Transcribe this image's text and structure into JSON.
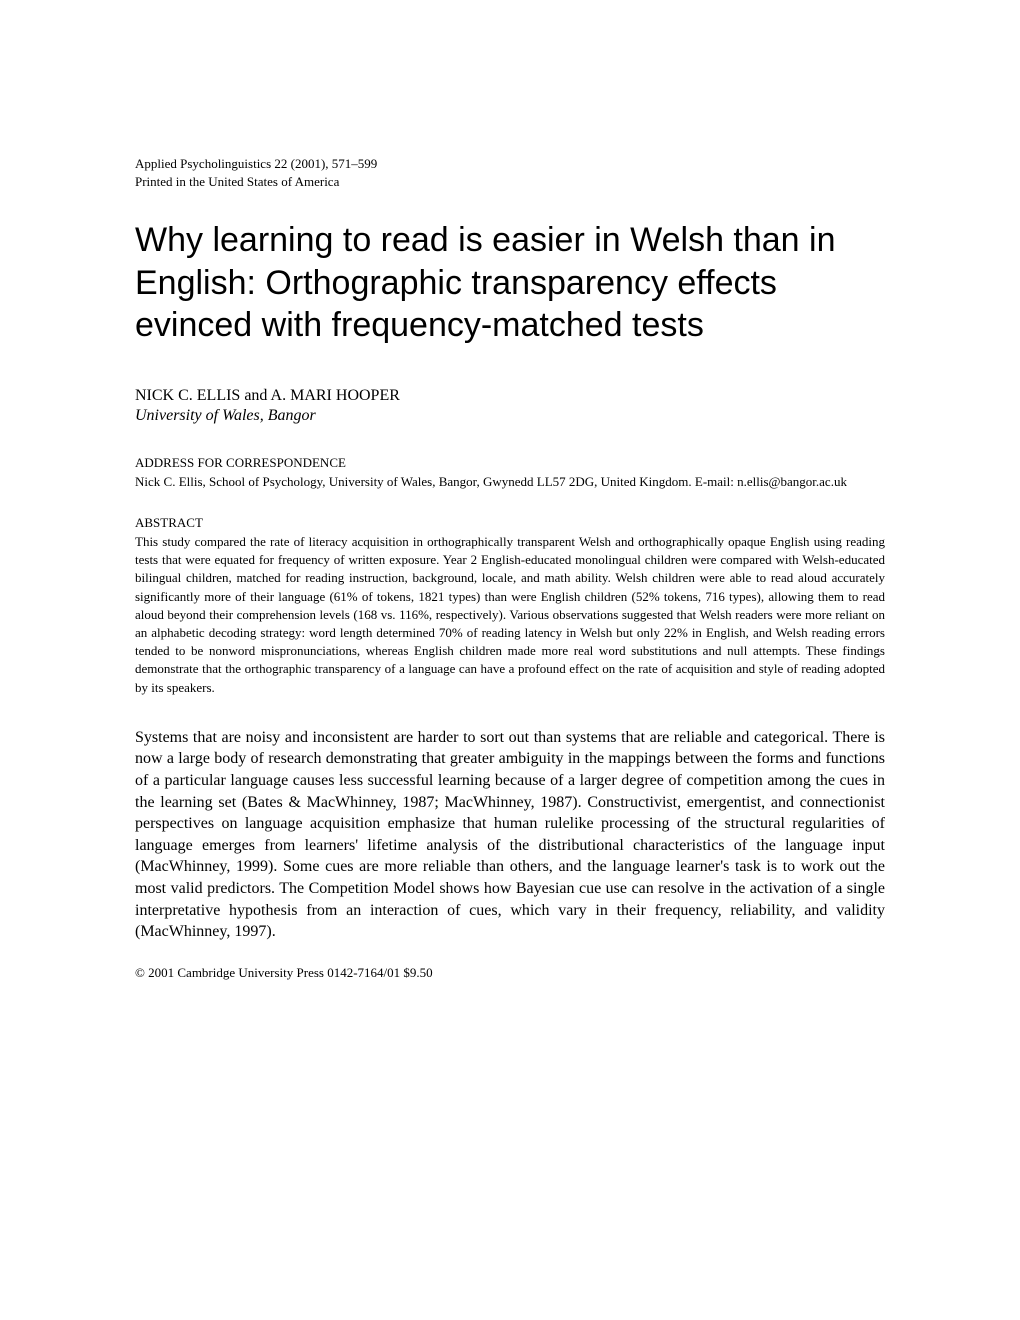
{
  "journal": {
    "line1": "Applied Psycholinguistics 22 (2001), 571–599",
    "line2": "Printed in the United States of America"
  },
  "title": "Why learning to read is easier in Welsh than in English: Orthographic transparency effects evinced with frequency-matched tests",
  "authors": "NICK C. ELLIS and A. MARI HOOPER",
  "affiliation": "University of Wales, Bangor",
  "correspondence": {
    "heading": "ADDRESS FOR CORRESPONDENCE",
    "text": "Nick C. Ellis, School of Psychology, University of Wales, Bangor, Gwynedd LL57 2DG, United Kingdom. E-mail: n.ellis@bangor.ac.uk"
  },
  "abstract": {
    "heading": "ABSTRACT",
    "text": "This study compared the rate of literacy acquisition in orthographically transparent Welsh and orthographically opaque English using reading tests that were equated for frequency of written exposure. Year 2 English-educated monolingual children were compared with Welsh-educated bilingual children, matched for reading instruction, background, locale, and math ability. Welsh children were able to read aloud accurately significantly more of their language (61% of tokens, 1821 types) than were English children (52% tokens, 716 types), allowing them to read aloud beyond their comprehension levels (168 vs. 116%, respectively). Various observations suggested that Welsh readers were more reliant on an alphabetic decoding strategy: word length determined 70% of reading latency in Welsh but only 22% in English, and Welsh reading errors tended to be nonword mispronunciations, whereas English children made more real word substitutions and null attempts. These findings demonstrate that the orthographic transparency of a language can have a profound effect on the rate of acquisition and style of reading adopted by its speakers."
  },
  "body": "Systems that are noisy and inconsistent are harder to sort out than systems that are reliable and categorical. There is now a large body of research demonstrating that greater ambiguity in the mappings between the forms and functions of a particular language causes less successful learning because of a larger degree of competition among the cues in the learning set (Bates & MacWhinney, 1987; MacWhinney, 1987). Constructivist, emergentist, and connectionist perspectives on language acquisition emphasize that human rulelike processing of the structural regularities of language emerges from learners' lifetime analysis of the distributional characteristics of the language input (MacWhinney, 1999). Some cues are more reliable than others, and the language learner's task is to work out the most valid predictors. The Competition Model shows how Bayesian cue use can resolve in the activation of a single interpretative hypothesis from an interaction of cues, which vary in their frequency, reliability, and validity (MacWhinney, 1997).",
  "copyright": "© 2001 Cambridge University Press 0142-7164/01 $9.50",
  "typography": {
    "title_font": "Arial",
    "body_font": "Times New Roman",
    "title_fontsize": 34,
    "body_fontsize": 16,
    "small_fontsize": 13
  },
  "colors": {
    "background": "#ffffff",
    "text": "#000000"
  }
}
